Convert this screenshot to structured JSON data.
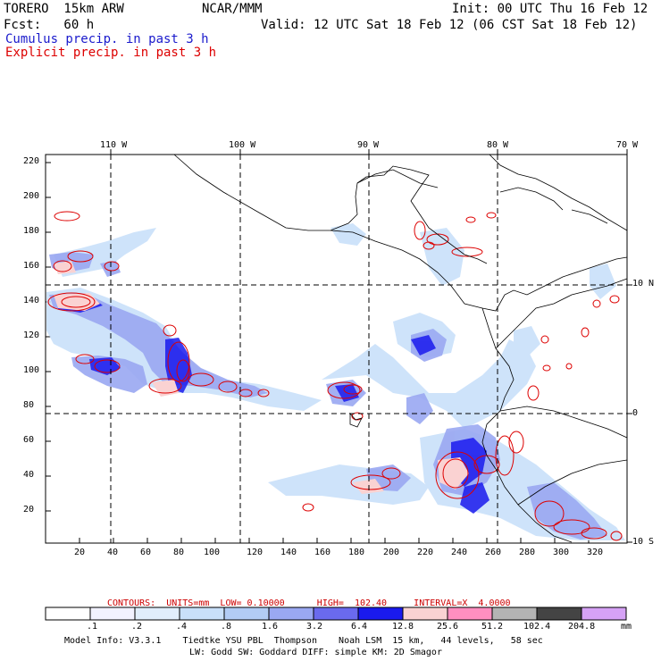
{
  "header": {
    "run": "TORERO  15km ARW",
    "org": "NCAR/MMM",
    "init": "Init: 00 UTC Thu 16 Feb 12",
    "fcst": "Fcst:   60 h",
    "valid": "Valid: 12 UTC Sat 18 Feb 12 (06 CST Sat 18 Feb 12)",
    "cumulus": "Cumulus precip. in past 3 h",
    "explicit": "Explicit precip. in past 3 h",
    "cumulus_color": "#1a1acc",
    "explicit_color": "#dd0000"
  },
  "map": {
    "lon_labels": [
      "110 W",
      "100 W",
      "90 W",
      "80 W",
      "70 W"
    ],
    "lat_labels": [
      "10 N",
      "0",
      "10 S"
    ],
    "y_ticks": [
      "220",
      "200",
      "180",
      "160",
      "140",
      "120",
      "100",
      "80",
      "60",
      "40",
      "20"
    ],
    "x_ticks": [
      "20",
      "40",
      "60",
      "80",
      "100",
      "120",
      "140",
      "160",
      "180",
      "200",
      "220",
      "240",
      "260",
      "280",
      "300",
      "320"
    ]
  },
  "contours": {
    "text": "CONTOURS:  UNITS=mm  LOW= 0.10000      HIGH=  102.40     INTERVAL=X  4.0000"
  },
  "legend": {
    "labels": [
      ".1",
      ".2",
      ".4",
      ".8",
      "1.6",
      "3.2",
      "6.4",
      "12.8",
      "25.6",
      "51.2",
      "102.4",
      "204.8"
    ],
    "units": "mm",
    "colors": [
      "#ffffff",
      "#f2f2ff",
      "#e1eefc",
      "#c9e0fa",
      "#b2ccf5",
      "#9aa8f2",
      "#6a6aee",
      "#1a1aee",
      "#fad2d2",
      "#ff8fc0",
      "#b4b4b4",
      "#444444",
      "#d6a2f6"
    ]
  },
  "footer": {
    "line1": "Model Info: V3.3.1    Tiedtke YSU PBL  Thompson    Noah LSM  15 km,   44 levels,   58 sec",
    "line2": "LW: Godd SW: Goddard DIFF: simple KM: 2D Smagor"
  }
}
